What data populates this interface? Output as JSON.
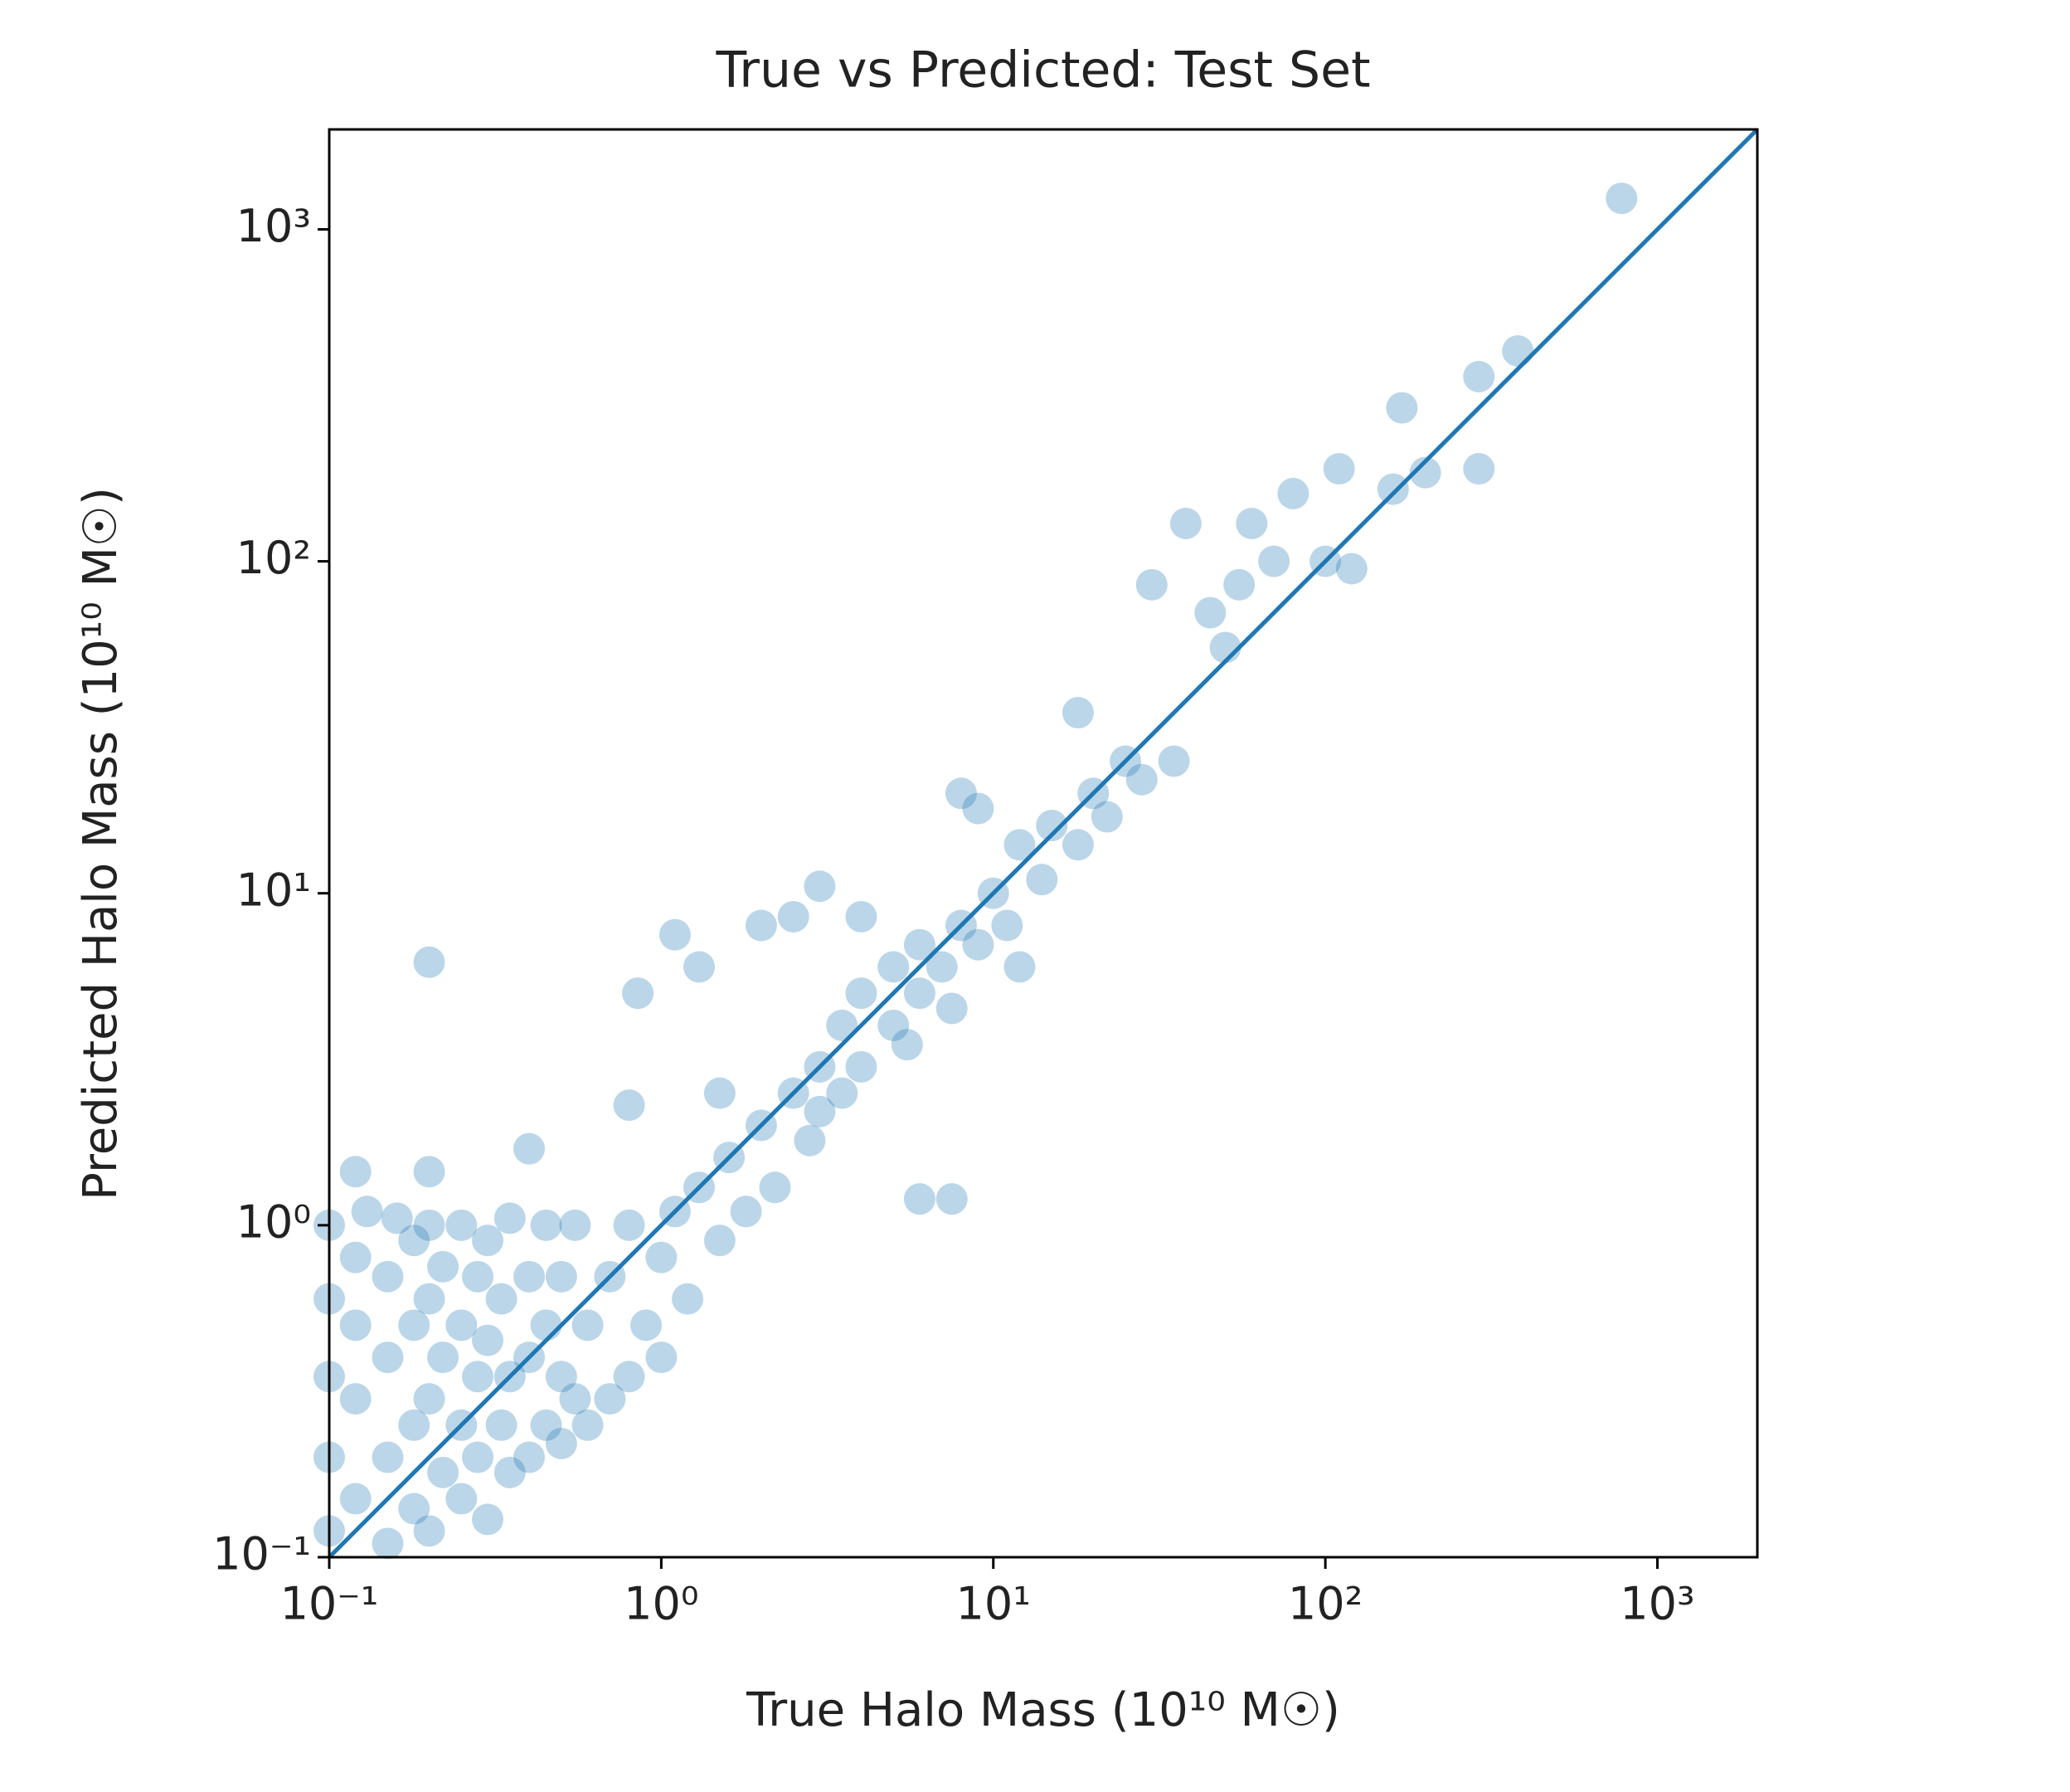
{
  "chart_data": {
    "type": "scatter",
    "title": "True vs Predicted: Test Set",
    "x_label": "True Halo Mass (10¹⁰ M☉)",
    "y_label": "Predicted Halo Mass (10¹⁰ M☉)",
    "log_x": true,
    "log_y": true,
    "xlim": [
      0.1,
      2000
    ],
    "ylim": [
      0.1,
      2000
    ],
    "xticks": [
      {
        "value": 0.1,
        "label": "10⁻¹"
      },
      {
        "value": 1,
        "label": "10⁰"
      },
      {
        "value": 10,
        "label": "10¹"
      },
      {
        "value": 100,
        "label": "10²"
      },
      {
        "value": 1000,
        "label": "10³"
      }
    ],
    "yticks": [
      {
        "value": 0.1,
        "label": "10⁻¹"
      },
      {
        "value": 1,
        "label": "10⁰"
      },
      {
        "value": 10,
        "label": "10¹"
      },
      {
        "value": 100,
        "label": "10²"
      },
      {
        "value": 1000,
        "label": "10³"
      }
    ],
    "color": "#1f77b4",
    "opacity": 0.3,
    "x": [
      0.1,
      0.1,
      0.1,
      0.1,
      0.1,
      0.12,
      0.12,
      0.12,
      0.12,
      0.13,
      0.15,
      0.15,
      0.15,
      0.15,
      0.16,
      0.18,
      0.18,
      0.18,
      0.18,
      0.2,
      0.2,
      0.2,
      0.2,
      0.22,
      0.22,
      0.22,
      0.25,
      0.25,
      0.25,
      0.25,
      0.28,
      0.28,
      0.28,
      0.3,
      0.3,
      0.3,
      0.33,
      0.33,
      0.35,
      0.35,
      0.35,
      0.4,
      0.4,
      0.4,
      0.45,
      0.45,
      0.45,
      0.5,
      0.5,
      0.5,
      0.55,
      0.55,
      0.6,
      0.6,
      0.7,
      0.7,
      0.8,
      0.8,
      0.9,
      1.0,
      1.0,
      1.1,
      1.2,
      1.3,
      1.5,
      1.6,
      1.8,
      2.0,
      2.2,
      2.5,
      2.8,
      3,
      3,
      3.5,
      3.5,
      4,
      4,
      5,
      5,
      5.5,
      6,
      6,
      7,
      7.5,
      8,
      9,
      10,
      11,
      12,
      14,
      15,
      18,
      20,
      22,
      25,
      28,
      0.2,
      0.85,
      1.1,
      1.3,
      2.0,
      2.5,
      0.12,
      0.2,
      0.4,
      0.8,
      1.5,
      3,
      4,
      8,
      9,
      12,
      6,
      7.5,
      38,
      30,
      50,
      35,
      100,
      110,
      120,
      160,
      200,
      170,
      290,
      290,
      380,
      780,
      60,
      80,
      70,
      45,
      55,
      18
    ],
    "y": [
      0.12,
      0.2,
      0.35,
      0.6,
      1.0,
      0.15,
      0.3,
      0.5,
      0.8,
      1.1,
      0.11,
      0.2,
      0.4,
      0.7,
      1.05,
      0.14,
      0.25,
      0.5,
      0.9,
      0.12,
      0.3,
      0.6,
      1.0,
      0.18,
      0.4,
      0.75,
      0.15,
      0.25,
      0.5,
      1.0,
      0.2,
      0.35,
      0.7,
      0.13,
      0.45,
      0.9,
      0.25,
      0.6,
      0.18,
      0.35,
      1.05,
      0.2,
      0.4,
      0.7,
      0.25,
      0.5,
      1.0,
      0.22,
      0.35,
      0.7,
      0.3,
      1.0,
      0.25,
      0.5,
      0.3,
      0.7,
      0.35,
      1.0,
      0.5,
      0.4,
      0.8,
      1.1,
      0.6,
      1.3,
      0.9,
      1.6,
      1.1,
      2.0,
      1.3,
      2.5,
      1.8,
      3,
      2.2,
      4,
      2.5,
      3,
      5,
      4,
      6,
      3.5,
      5,
      7,
      6,
      4.5,
      8,
      7,
      10,
      8,
      14,
      11,
      16,
      14,
      20,
      17,
      25,
      22,
      6.2,
      5,
      7.5,
      6,
      8,
      8.5,
      1.45,
      1.45,
      1.7,
      2.3,
      2.5,
      10.5,
      8.5,
      20,
      18,
      6,
      1.2,
      1.2,
      130,
      85,
      55,
      25,
      100,
      190,
      95,
      165,
      185,
      290,
      360,
      190,
      430,
      1240,
      130,
      160,
      100,
      70,
      85,
      35
    ],
    "reference_line": {
      "x": [
        0.1,
        2000
      ],
      "y": [
        0.1,
        2000
      ]
    }
  }
}
